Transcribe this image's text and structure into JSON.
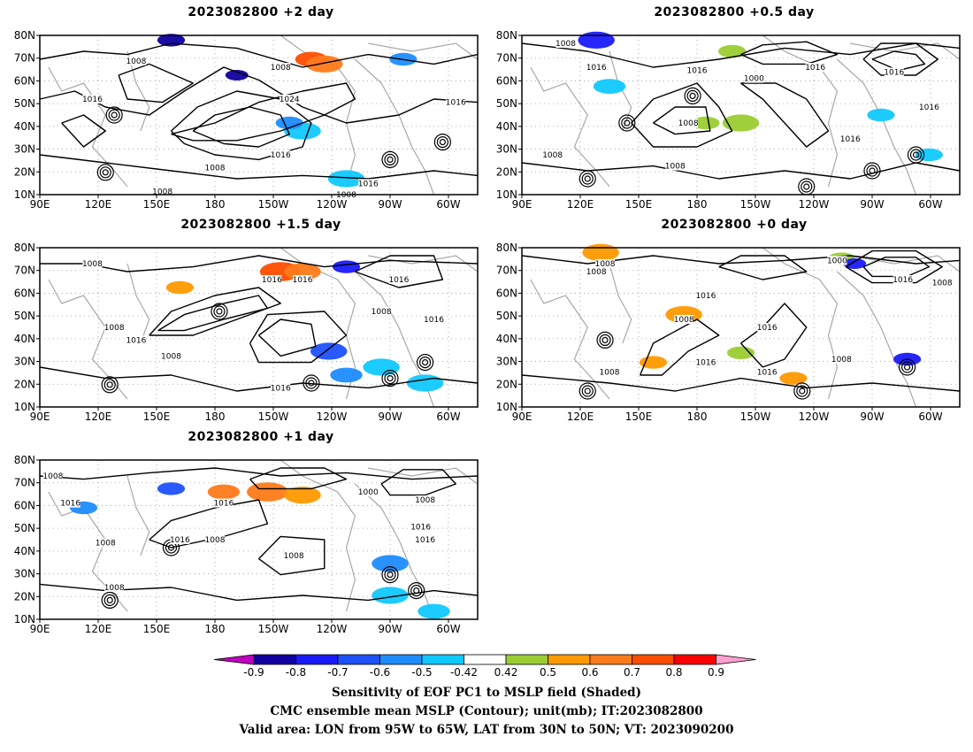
{
  "panels": [
    {
      "id": "p2",
      "title": "2023082800  +2 day",
      "contours": [
        "1008",
        "1016",
        "1008",
        "1016",
        "1024",
        "1016",
        "1008",
        "1016",
        "1008",
        "1008"
      ]
    },
    {
      "id": "p05",
      "title": "2023082800  +0.5 day",
      "contours": [
        "1008",
        "1016",
        "1016",
        "1008",
        "1000",
        "1016",
        "1016",
        "1016",
        "1008",
        "1016",
        "1008"
      ]
    },
    {
      "id": "p15",
      "title": "2023082800  +1.5 day",
      "contours": [
        "1008",
        "1008",
        "1016",
        "1008",
        "1016",
        "1016",
        "1016",
        "1008",
        "1016",
        "1016"
      ]
    },
    {
      "id": "p0",
      "title": "2023082800  +0 day",
      "contours": [
        "1008",
        "1008",
        "1016",
        "1008",
        "1000",
        "1016",
        "1016",
        "1008",
        "1016",
        "1016",
        "1008",
        "1008"
      ]
    },
    {
      "id": "p1",
      "title": "2023082800  +1 day",
      "contours": [
        "1008",
        "1016",
        "1008",
        "1016",
        "1016",
        "1008",
        "1008",
        "1000",
        "1008",
        "1016",
        "1016",
        "1008"
      ]
    }
  ],
  "axes": {
    "lat_ticks": [
      "80N",
      "70N",
      "60N",
      "50N",
      "40N",
      "30N",
      "20N",
      "10N"
    ],
    "lon_ticks": [
      "90E",
      "120E",
      "150E",
      "180",
      "150W",
      "120W",
      "90W",
      "60W"
    ]
  },
  "colorbar": {
    "labels": [
      "-0.9",
      "-0.8",
      "-0.7",
      "-0.6",
      "-0.5",
      "-0.42",
      "0.42",
      "0.5",
      "0.6",
      "0.7",
      "0.8",
      "0.9"
    ],
    "colors": [
      "#1000a0",
      "#1a1aff",
      "#1e50ff",
      "#1e8cff",
      "#10c8ff",
      "#ffffff",
      "#9acd32",
      "#ff9900",
      "#ff7a1a",
      "#ff4d00",
      "#ff0000"
    ],
    "low_color": "#c000c0",
    "high_color": "#ffa0d0"
  },
  "caption": {
    "line1": "Sensitivity of EOF PC1 to MSLP field (Shaded)",
    "line2": "CMC ensemble mean MSLP (Contour); unit(mb); IT:2023082800",
    "line3": "Valid area: LON from 95W to 65W, LAT from 30N to 50N; VT: 2023090200"
  }
}
